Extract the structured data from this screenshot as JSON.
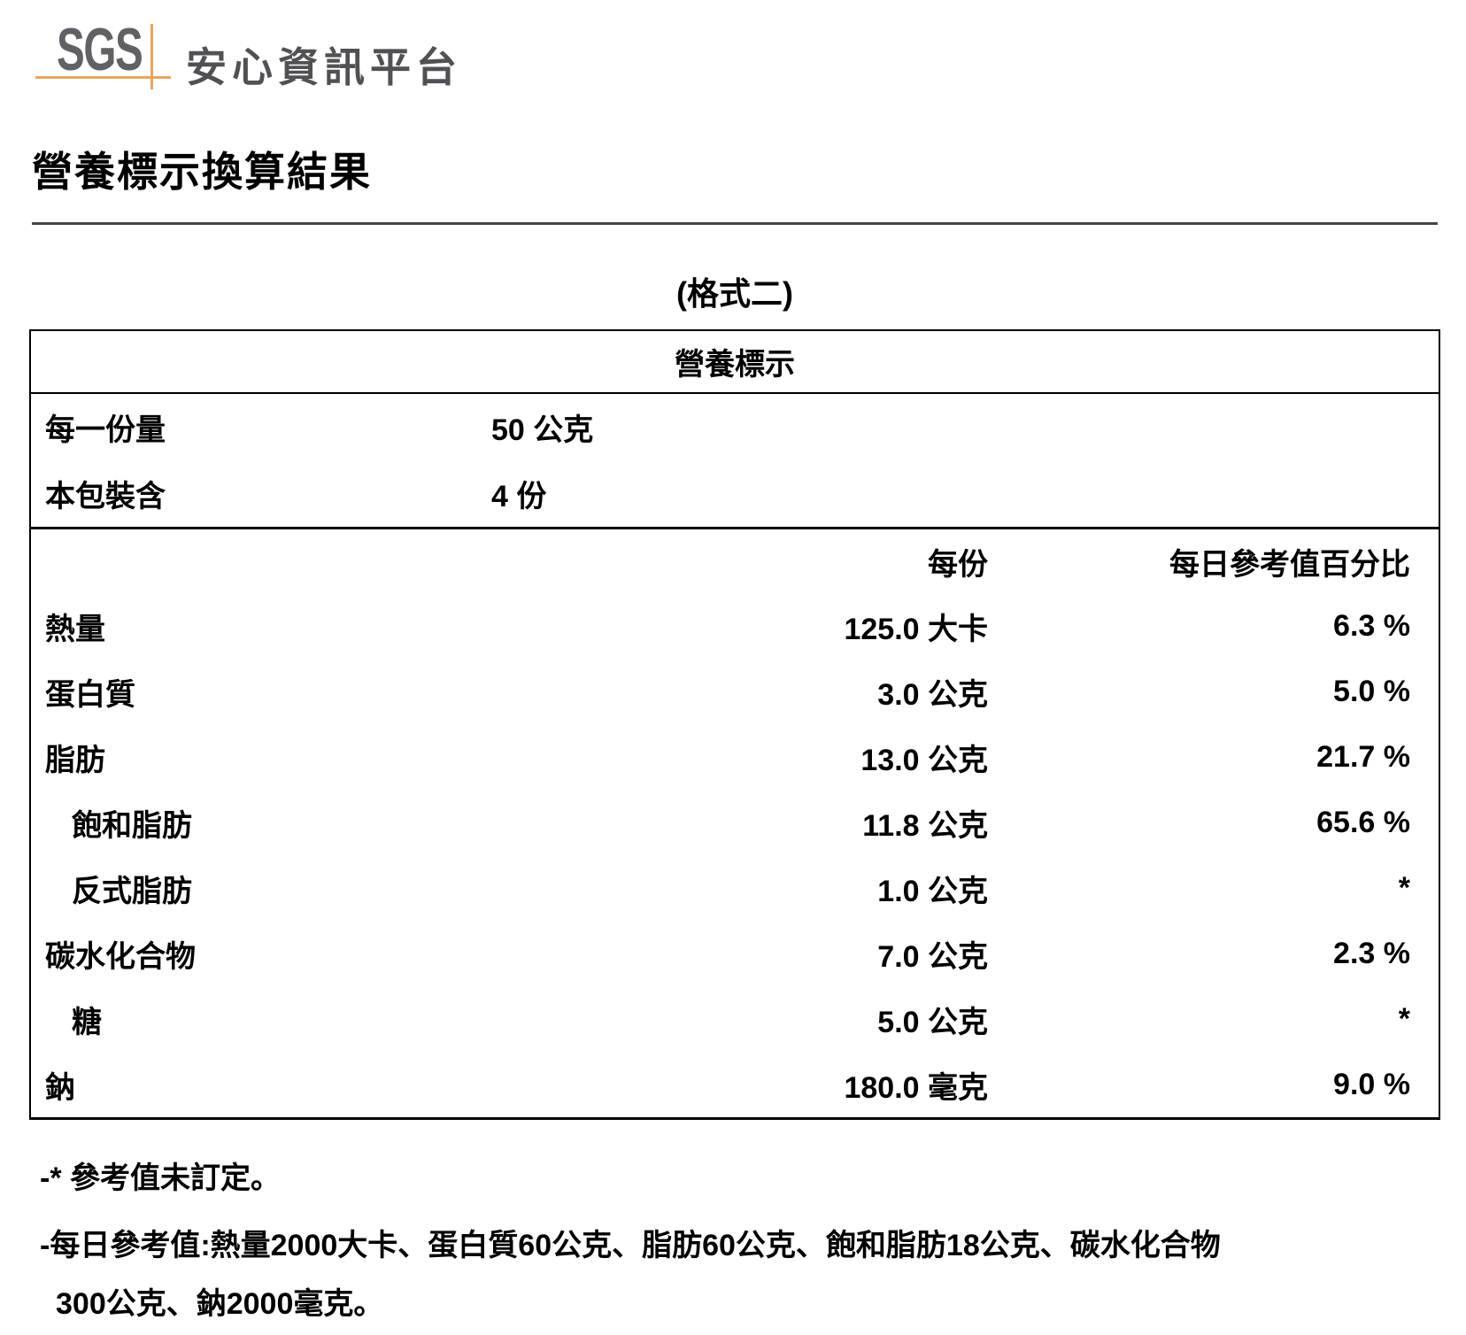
{
  "header": {
    "logo_text": "SGS",
    "platform_name": "安心資訊平台"
  },
  "page": {
    "title": "營養標示換算結果",
    "format_label": "(格式二)"
  },
  "nutrition_table": {
    "table_title": "營養標示",
    "serving_rows": [
      {
        "label": "每一份量",
        "value": "50 公克"
      },
      {
        "label": "本包裝含",
        "value": "4 份"
      }
    ],
    "columns": {
      "per_serving": "每份",
      "daily_value_pct": "每日參考值百分比"
    },
    "rows": [
      {
        "label": "熱量",
        "indent": false,
        "per_serving": "125.0 大卡",
        "daily_pct": "6.3 %"
      },
      {
        "label": "蛋白質",
        "indent": false,
        "per_serving": "3.0 公克",
        "daily_pct": "5.0 %"
      },
      {
        "label": "脂肪",
        "indent": false,
        "per_serving": "13.0 公克",
        "daily_pct": "21.7 %"
      },
      {
        "label": "飽和脂肪",
        "indent": true,
        "per_serving": "11.8 公克",
        "daily_pct": "65.6 %"
      },
      {
        "label": "反式脂肪",
        "indent": true,
        "per_serving": "1.0 公克",
        "daily_pct": "*"
      },
      {
        "label": "碳水化合物",
        "indent": false,
        "per_serving": "7.0 公克",
        "daily_pct": "2.3 %"
      },
      {
        "label": "糖",
        "indent": true,
        "per_serving": "5.0 公克",
        "daily_pct": "*"
      },
      {
        "label": "鈉",
        "indent": false,
        "per_serving": "180.0 毫克",
        "daily_pct": "9.0 %"
      }
    ]
  },
  "footnotes": {
    "note_undefined_ref": "-* 參考值未訂定。",
    "note_daily_ref_line1": "-每日參考值:熱量2000大卡、蛋白質60公克、脂肪60公克、飽和脂肪18公克、碳水化合物",
    "note_daily_ref_line2": "300公克、鈉2000毫克。"
  },
  "colors": {
    "brand_orange": "#e9a55e",
    "logo_gray": "#606165",
    "platform_text_gray": "#505154",
    "text_black": "#000000"
  }
}
